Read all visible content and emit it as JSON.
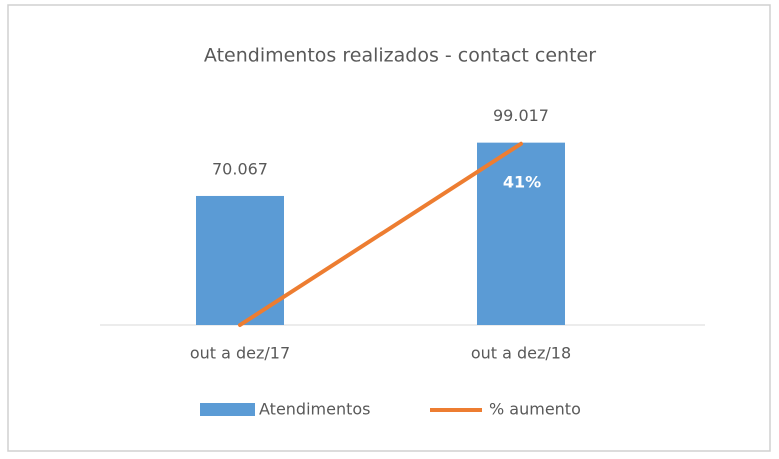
{
  "chart_data": {
    "type": "bar",
    "title": "Atendimentos realizados -  contact center",
    "categories": [
      "out a dez/17",
      "out a dez/18"
    ],
    "series": [
      {
        "name": "Atendimentos",
        "type": "bar",
        "color": "#5b9bd5",
        "values": [
          70067,
          99017
        ],
        "value_labels": [
          "70.067",
          "99.017"
        ]
      },
      {
        "name": "% aumento",
        "type": "line",
        "axis": "y2",
        "color": "#ed7d31",
        "values": [
          0,
          41
        ],
        "value_labels": [
          null,
          "41%"
        ]
      }
    ],
    "ylim": [
      0,
      120000
    ],
    "y2lim": [
      0,
      50
    ],
    "legend": "bottom"
  }
}
